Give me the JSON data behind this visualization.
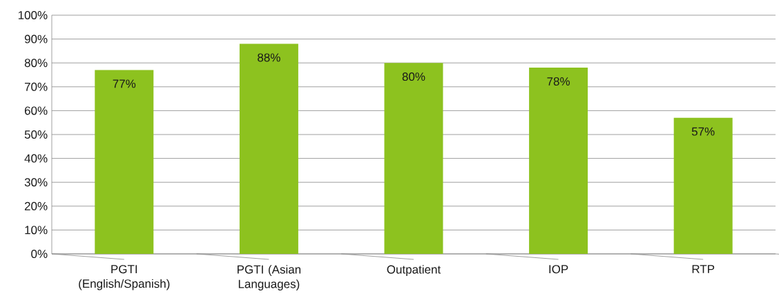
{
  "chart_data": {
    "type": "bar",
    "categories": [
      "PGTI (English/Spanish)",
      "PGTI (Asian Languages)",
      "Outpatient",
      "IOP",
      "RTP"
    ],
    "values": [
      77,
      88,
      80,
      78,
      57
    ],
    "value_labels": [
      "77%",
      "88%",
      "80%",
      "78%",
      "57%"
    ],
    "color": "#8dc21f",
    "ylim": [
      0,
      100
    ],
    "yticks": [
      {
        "value": 0,
        "label": "0%"
      },
      {
        "value": 10,
        "label": "10%"
      },
      {
        "value": 20,
        "label": "20%"
      },
      {
        "value": 30,
        "label": "30%"
      },
      {
        "value": 40,
        "label": "40%"
      },
      {
        "value": 50,
        "label": "50%"
      },
      {
        "value": 60,
        "label": "60%"
      },
      {
        "value": 70,
        "label": "70%"
      },
      {
        "value": 80,
        "label": "80%"
      },
      {
        "value": 90,
        "label": "90%"
      },
      {
        "value": 100,
        "label": "100%"
      }
    ],
    "grid": "y"
  }
}
